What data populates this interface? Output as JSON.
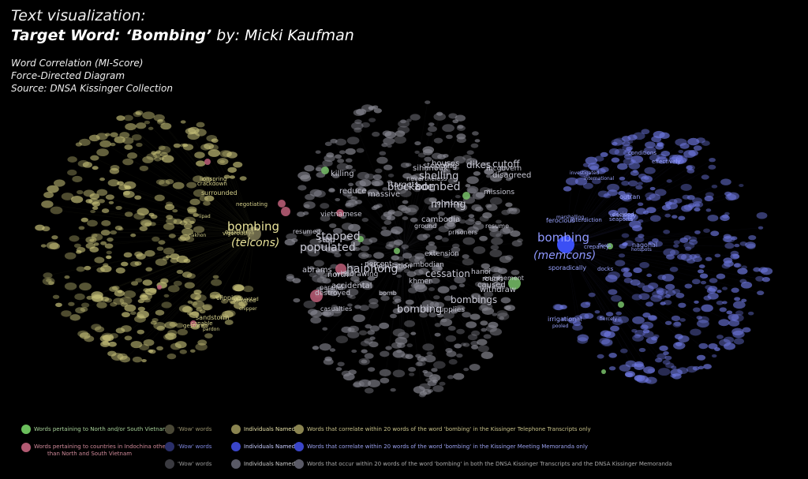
{
  "header": {
    "line1": "Text visualization:",
    "target_prefix": "Target Word: ‘Bombing’",
    "byline": "by: Micki Kaufman"
  },
  "subtitle": {
    "line1": "Word Correlation (MI-Score)",
    "line2": "Force-Directed Diagram",
    "line3": "Source: DNSA Kissinger Collection"
  },
  "hubs": {
    "telcons": {
      "word": "bombing",
      "source": "(telcons)"
    },
    "memcons": {
      "word": "bombing",
      "source": "(memcons)"
    }
  },
  "colors": {
    "telcons": "#c8c27a",
    "memcons": "#6e78e0",
    "both": "#8a8a94",
    "vietnam": "#79c26a",
    "indochina": "#c0607a"
  },
  "center_words": [
    "vietnamese",
    "sihanouk",
    "caused",
    "cambodia",
    "nevertheless",
    "withdrawing",
    "north",
    "shelling",
    "casualties",
    "mining",
    "cutoff",
    "bombings",
    "parallel",
    "houses",
    "engagement",
    "resumed",
    "blockade",
    "bomb",
    "stopped",
    "killing",
    "destroyed",
    "extension",
    "disagreed",
    "accidental",
    "stop",
    "stopping",
    "rough",
    "populated",
    "bombed",
    "bombing",
    "cessation",
    "dikes",
    "haiphong",
    "khmer",
    "reduce",
    "cambodian",
    "resume",
    "targets",
    "hanoi",
    "withdraw",
    "missions",
    "population",
    "prisoners",
    "massive",
    "percent",
    "ground",
    "johnson",
    "supplies",
    "abrams",
    "mcgovern"
  ],
  "left_words": [
    "clipping",
    "chipper",
    "opponents",
    "lipad",
    "arrested",
    "nakhon",
    "capable",
    "surrounded",
    "lionspring",
    "negotiating",
    "gesture",
    "vigorously",
    "sandstorm",
    "pardon",
    "prevented",
    "crackdown"
  ],
  "right_words": [
    "fiercely",
    "hotspots",
    "pooled",
    "crepancy",
    "effectively",
    "ferocious",
    "seaports",
    "fleets",
    "irrigational",
    "marshalling",
    "sporadically",
    "docks",
    "outran",
    "nagonal",
    "investigated",
    "unwittingly",
    "decided",
    "international",
    "conditions",
    "interdiction"
  ],
  "legend": {
    "vietnam": "Words pertaining to North and/or South Vietnam",
    "indochina_line1": "Words pertaining to countries in Indochina other",
    "indochina_line2": "than North and South Vietnam",
    "wow_telcons": "'Wow' words",
    "wow_memcons": "'Wow' words",
    "wow_both": "'Wow' words",
    "ind_telcons": "Individuals Named",
    "ind_memcons": "Individuals Named",
    "ind_both": "Individuals Named",
    "corr_telcons": "Words that correlate within 20 words of the word 'bombing' in the Kissinger Telephone Transcripts only",
    "corr_memcons": "Words that correlate within 20 words of the word 'bombing' in the Kissinger Meeting Memoranda only",
    "corr_both": "Words that occur within 20 words of the word 'bombing' in both the DNSA Kissinger Transcripts and the DNSA Kissinger Memoranda"
  }
}
